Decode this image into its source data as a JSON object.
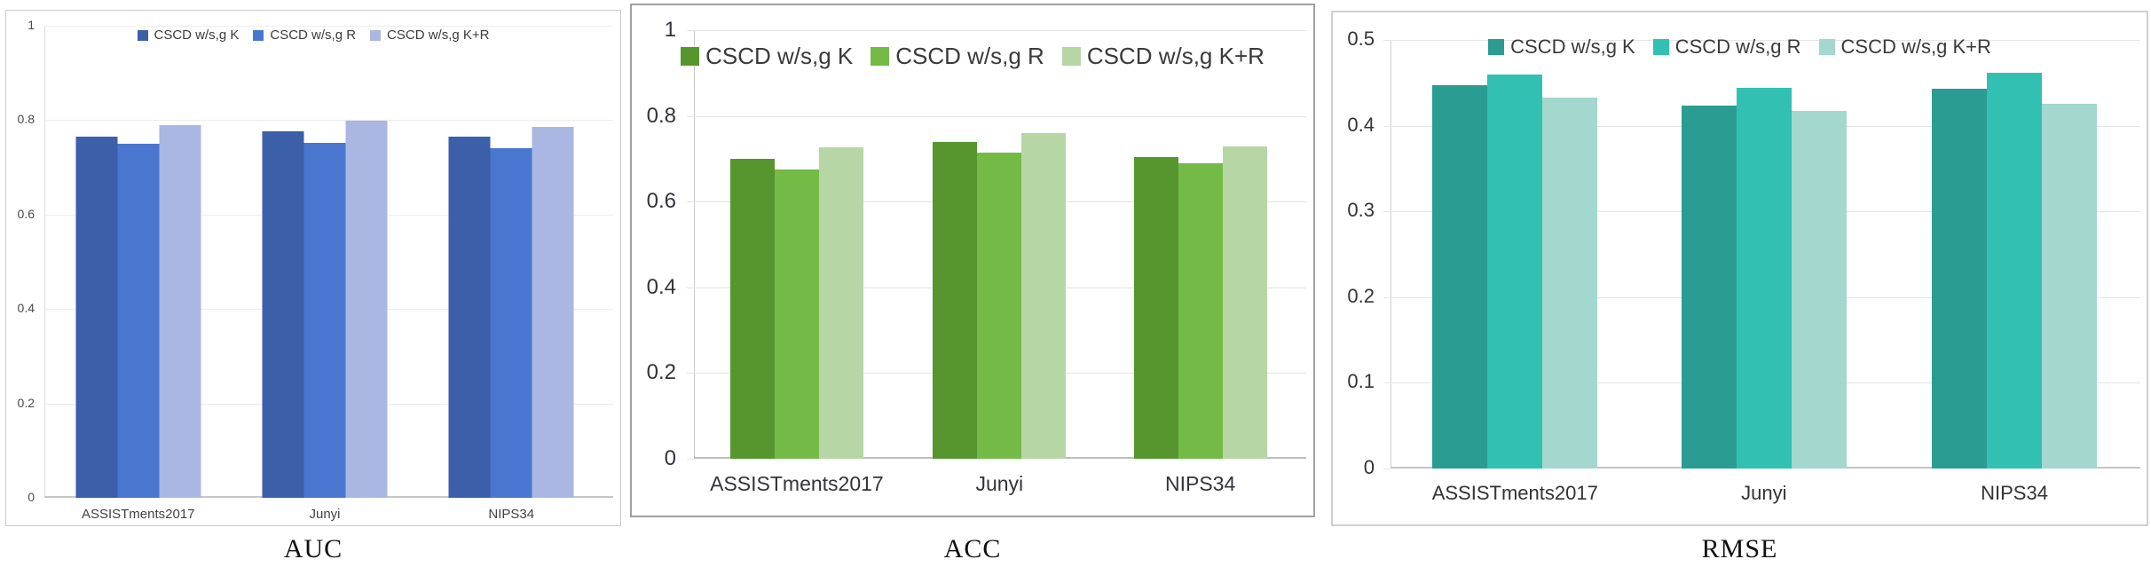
{
  "chart_data": [
    {
      "type": "bar",
      "title": "AUC",
      "categories": [
        "ASSISTments2017",
        "Junyi",
        "NIPS34"
      ],
      "series": [
        {
          "name": "CSCD w/s,g K",
          "values": [
            0.765,
            0.776,
            0.765
          ]
        },
        {
          "name": "CSCD w/s,g R",
          "values": [
            0.75,
            0.752,
            0.741
          ]
        },
        {
          "name": "CSCD w/s,g K+R",
          "values": [
            0.79,
            0.799,
            0.785
          ]
        }
      ],
      "palette": [
        "#3b5fa8",
        "#4a76cf",
        "#aab7e2"
      ],
      "ylim": [
        0,
        1
      ],
      "yticks": [
        "1",
        "0.8",
        "0.6",
        "0.4",
        "0.2",
        "0"
      ],
      "legend_position": "top-center",
      "grid": true
    },
    {
      "type": "bar",
      "title": "ACC",
      "categories": [
        "ASSISTments2017",
        "Junyi",
        "NIPS34"
      ],
      "series": [
        {
          "name": "CSCD w/s,g K",
          "values": [
            0.699,
            0.739,
            0.703
          ]
        },
        {
          "name": "CSCD w/s,g R",
          "values": [
            0.674,
            0.714,
            0.69
          ]
        },
        {
          "name": "CSCD w/s,g K+R",
          "values": [
            0.726,
            0.76,
            0.729
          ]
        }
      ],
      "palette": [
        "#57962f",
        "#74ba46",
        "#b7d6a6"
      ],
      "ylim": [
        0,
        1
      ],
      "yticks": [
        "1",
        "0.8",
        "0.6",
        "0.4",
        "0.2",
        "0"
      ],
      "legend_position": "top-center",
      "grid": true
    },
    {
      "type": "bar",
      "title": "RMSE",
      "categories": [
        "ASSISTments2017",
        "Junyi",
        "NIPS34"
      ],
      "series": [
        {
          "name": "CSCD w/s,g K",
          "values": [
            0.447,
            0.423,
            0.443
          ]
        },
        {
          "name": "CSCD w/s,g R",
          "values": [
            0.46,
            0.444,
            0.462
          ]
        },
        {
          "name": "CSCD w/s,g K+R",
          "values": [
            0.433,
            0.417,
            0.425
          ]
        }
      ],
      "palette": [
        "#2a9c92",
        "#31c0b2",
        "#a4d7ce"
      ],
      "ylim": [
        0,
        0.5
      ],
      "yticks": [
        "0.5",
        "0.4",
        "0.3",
        "0.2",
        "0.1",
        "0"
      ],
      "legend_position": "top-center",
      "grid": true
    }
  ]
}
